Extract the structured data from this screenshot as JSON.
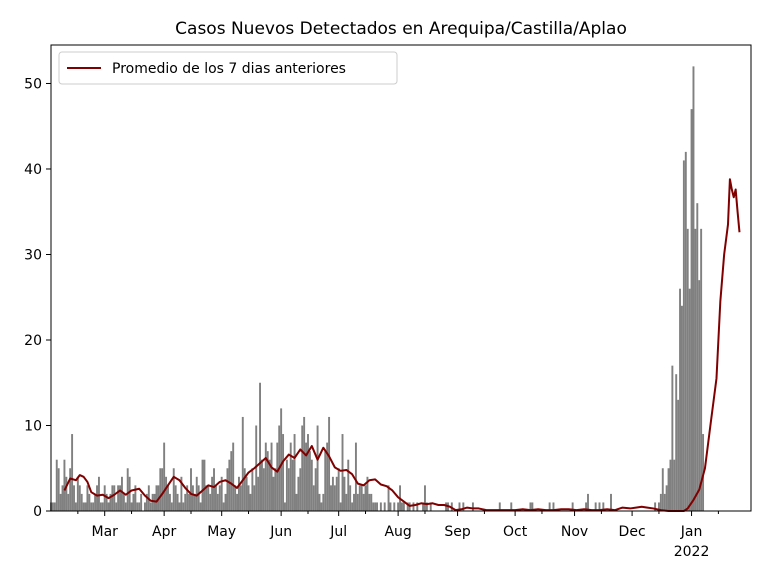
{
  "colors": {
    "bars": "#808080",
    "line": "#800000",
    "axis": "#000000",
    "legend_border": "#cccccc",
    "background": "#ffffff"
  },
  "chart_data": {
    "type": "bar",
    "title": "Casos Nuevos Detectados en Arequipa/Castilla/Aplao",
    "xlabel": "",
    "ylabel": "",
    "ylim": [
      0,
      54.5
    ],
    "xlim": [
      "2021-02-01",
      "2022-02-01"
    ],
    "yticks": [
      0,
      10,
      20,
      30,
      40,
      50
    ],
    "xticks": [
      {
        "date": "2021-03-01",
        "label": "Mar",
        "sublabel": ""
      },
      {
        "date": "2021-04-01",
        "label": "Apr",
        "sublabel": ""
      },
      {
        "date": "2021-05-01",
        "label": "May",
        "sublabel": ""
      },
      {
        "date": "2021-06-01",
        "label": "Jun",
        "sublabel": ""
      },
      {
        "date": "2021-07-01",
        "label": "Jul",
        "sublabel": ""
      },
      {
        "date": "2021-08-01",
        "label": "Aug",
        "sublabel": ""
      },
      {
        "date": "2021-09-01",
        "label": "Sep",
        "sublabel": ""
      },
      {
        "date": "2021-10-01",
        "label": "Oct",
        "sublabel": ""
      },
      {
        "date": "2021-11-01",
        "label": "Nov",
        "sublabel": ""
      },
      {
        "date": "2021-12-01",
        "label": "Dec",
        "sublabel": ""
      },
      {
        "date": "2022-01-01",
        "label": "Jan",
        "sublabel": "2022"
      }
    ],
    "grid": false,
    "legend": {
      "position": "top-left",
      "entries": [
        "Promedio de los 7 dias anteriores"
      ]
    },
    "series": [
      {
        "type": "bar",
        "color": "#808080",
        "segments": [
          {
            "start": "2021-02-01",
            "values": [
              1,
              1,
              1,
              6,
              5,
              2,
              3,
              6,
              4,
              2,
              5,
              9,
              3,
              1,
              4,
              3,
              2,
              1,
              1,
              3,
              2,
              1,
              1,
              2,
              3,
              4,
              1,
              1,
              3,
              2,
              1,
              2,
              3,
              3,
              1,
              3,
              3,
              4,
              2,
              1,
              5,
              4,
              1,
              2,
              3,
              1,
              1,
              2,
              0,
              1,
              2,
              3,
              1,
              2,
              2,
              3,
              3,
              5,
              5,
              8,
              4,
              3,
              2,
              1,
              5,
              3,
              2,
              1,
              4,
              1,
              2,
              3,
              2,
              5,
              3,
              2,
              4,
              3,
              1,
              6,
              6,
              3,
              3,
              2,
              4,
              5,
              3,
              2,
              3,
              4,
              1,
              2,
              5,
              6,
              7,
              8,
              3,
              2,
              4,
              3,
              11,
              5,
              4,
              3,
              2,
              5,
              3,
              10,
              4,
              15,
              6,
              5,
              8,
              7,
              6,
              8,
              4,
              5,
              8,
              10,
              12,
              9,
              1,
              6,
              5,
              8,
              6,
              9,
              2,
              4,
              5,
              10,
              11,
              8,
              9,
              7,
              6,
              3,
              5,
              10,
              2,
              1,
              2,
              7,
              8,
              11,
              3,
              4,
              3,
              4,
              5,
              1,
              9,
              4,
              2,
              6,
              3,
              1,
              2,
              8,
              2,
              3,
              3,
              2,
              3,
              4,
              2,
              2,
              1,
              1,
              1,
              0,
              1,
              0,
              1,
              0,
              3,
              1,
              0,
              1,
              0,
              1,
              3,
              1,
              1,
              0,
              1,
              1,
              0,
              1,
              0,
              1,
              0,
              0,
              1,
              3,
              1,
              0,
              1,
              0,
              0,
              0,
              0,
              0,
              0,
              0,
              1,
              1,
              0,
              1,
              0,
              0,
              0,
              1,
              0,
              1,
              0,
              0,
              0,
              0,
              1,
              0,
              0,
              0,
              0,
              0,
              0,
              0,
              0,
              0,
              0,
              0,
              0,
              0,
              1,
              0,
              0,
              0,
              0,
              0,
              1,
              0,
              0,
              0,
              0,
              0,
              0,
              0,
              0,
              0,
              1,
              1,
              0,
              0,
              0,
              0,
              0,
              0,
              0,
              0,
              1,
              0,
              1,
              0,
              0,
              0,
              0,
              0,
              0,
              0,
              0,
              0,
              1,
              0,
              0,
              0,
              0,
              0,
              0,
              1,
              2,
              0,
              0,
              0,
              1,
              0,
              1,
              0,
              1,
              0,
              0,
              0,
              2,
              0,
              0,
              0,
              0,
              0,
              0,
              0,
              0,
              0,
              0,
              0,
              0,
              0,
              0,
              0,
              0,
              0,
              0,
              0,
              0,
              0,
              0,
              1,
              0,
              1,
              2,
              5,
              2,
              3,
              5,
              6,
              17,
              6,
              16,
              13,
              26,
              24,
              41,
              42,
              33,
              26,
              47,
              52,
              33,
              36,
              27,
              33,
              9
            ]
          }
        ]
      },
      {
        "type": "line",
        "name": "Promedio de los 7 dias anteriores",
        "color": "#800000",
        "points": [
          [
            "2021-02-08",
            2.4
          ],
          [
            "2021-02-11",
            3.8
          ],
          [
            "2021-02-14",
            3.6
          ],
          [
            "2021-02-16",
            4.2
          ],
          [
            "2021-02-18",
            4.0
          ],
          [
            "2021-02-20",
            3.4
          ],
          [
            "2021-02-22",
            2.2
          ],
          [
            "2021-02-25",
            1.8
          ],
          [
            "2021-02-28",
            1.9
          ],
          [
            "2021-03-03",
            1.5
          ],
          [
            "2021-03-06",
            1.9
          ],
          [
            "2021-03-09",
            2.4
          ],
          [
            "2021-03-12",
            1.9
          ],
          [
            "2021-03-15",
            2.4
          ],
          [
            "2021-03-19",
            2.6
          ],
          [
            "2021-03-22",
            1.8
          ],
          [
            "2021-03-25",
            1.2
          ],
          [
            "2021-03-28",
            1.1
          ],
          [
            "2021-03-31",
            2.0
          ],
          [
            "2021-04-03",
            3.0
          ],
          [
            "2021-04-06",
            4.0
          ],
          [
            "2021-04-09",
            3.6
          ],
          [
            "2021-04-12",
            2.7
          ],
          [
            "2021-04-15",
            2.0
          ],
          [
            "2021-04-18",
            1.8
          ],
          [
            "2021-04-21",
            2.4
          ],
          [
            "2021-04-24",
            3.0
          ],
          [
            "2021-04-27",
            2.8
          ],
          [
            "2021-04-30",
            3.4
          ],
          [
            "2021-05-03",
            3.6
          ],
          [
            "2021-05-06",
            3.2
          ],
          [
            "2021-05-09",
            2.7
          ],
          [
            "2021-05-12",
            3.6
          ],
          [
            "2021-05-15",
            4.5
          ],
          [
            "2021-05-18",
            5.0
          ],
          [
            "2021-05-21",
            5.6
          ],
          [
            "2021-05-24",
            6.2
          ],
          [
            "2021-05-27",
            5.1
          ],
          [
            "2021-05-30",
            4.6
          ],
          [
            "2021-06-02",
            5.8
          ],
          [
            "2021-06-05",
            6.6
          ],
          [
            "2021-06-08",
            6.2
          ],
          [
            "2021-06-11",
            7.2
          ],
          [
            "2021-06-14",
            6.5
          ],
          [
            "2021-06-17",
            7.6
          ],
          [
            "2021-06-20",
            6.0
          ],
          [
            "2021-06-23",
            7.4
          ],
          [
            "2021-06-26",
            6.4
          ],
          [
            "2021-06-29",
            5.1
          ],
          [
            "2021-07-02",
            4.7
          ],
          [
            "2021-07-05",
            4.8
          ],
          [
            "2021-07-08",
            4.3
          ],
          [
            "2021-07-11",
            3.2
          ],
          [
            "2021-07-14",
            3.0
          ],
          [
            "2021-07-17",
            3.6
          ],
          [
            "2021-07-20",
            3.7
          ],
          [
            "2021-07-23",
            3.1
          ],
          [
            "2021-07-26",
            2.9
          ],
          [
            "2021-07-29",
            2.4
          ],
          [
            "2021-08-01",
            1.6
          ],
          [
            "2021-08-04",
            1.1
          ],
          [
            "2021-08-07",
            0.6
          ],
          [
            "2021-08-10",
            0.7
          ],
          [
            "2021-08-13",
            0.9
          ],
          [
            "2021-08-16",
            0.8
          ],
          [
            "2021-08-19",
            0.9
          ],
          [
            "2021-08-22",
            0.7
          ],
          [
            "2021-08-25",
            0.7
          ],
          [
            "2021-08-28",
            0.5
          ],
          [
            "2021-08-31",
            0.1
          ],
          [
            "2021-09-03",
            0.2
          ],
          [
            "2021-09-06",
            0.4
          ],
          [
            "2021-09-09",
            0.3
          ],
          [
            "2021-09-12",
            0.3
          ],
          [
            "2021-09-16",
            0.1
          ],
          [
            "2021-09-19",
            0.1
          ],
          [
            "2021-09-23",
            0.1
          ],
          [
            "2021-09-27",
            0.1
          ],
          [
            "2021-10-01",
            0.1
          ],
          [
            "2021-10-05",
            0.2
          ],
          [
            "2021-10-09",
            0.1
          ],
          [
            "2021-10-13",
            0.2
          ],
          [
            "2021-10-17",
            0.1
          ],
          [
            "2021-10-21",
            0.1
          ],
          [
            "2021-10-25",
            0.2
          ],
          [
            "2021-10-29",
            0.2
          ],
          [
            "2021-11-02",
            0.1
          ],
          [
            "2021-11-06",
            0.2
          ],
          [
            "2021-11-10",
            0.1
          ],
          [
            "2021-11-14",
            0.1
          ],
          [
            "2021-11-18",
            0.2
          ],
          [
            "2021-11-22",
            0.1
          ],
          [
            "2021-11-26",
            0.4
          ],
          [
            "2021-11-30",
            0.3
          ],
          [
            "2021-12-03",
            0.4
          ],
          [
            "2021-12-06",
            0.5
          ],
          [
            "2021-12-09",
            0.4
          ],
          [
            "2021-12-12",
            0.3
          ],
          [
            "2021-12-16",
            0.1
          ],
          [
            "2021-12-20",
            0.0
          ],
          [
            "2021-12-24",
            0.0
          ],
          [
            "2021-12-28",
            0.0
          ],
          [
            "2021-12-30",
            0.3
          ],
          [
            "2022-01-02",
            1.3
          ],
          [
            "2022-01-05",
            2.5
          ],
          [
            "2022-01-08",
            5.0
          ],
          [
            "2022-01-11",
            10.3
          ],
          [
            "2022-01-14",
            15.5
          ],
          [
            "2022-01-16",
            24.5
          ],
          [
            "2022-01-18",
            30.0
          ],
          [
            "2022-01-20",
            33.5
          ],
          [
            "2022-01-21",
            38.8
          ],
          [
            "2022-01-22",
            37.6
          ],
          [
            "2022-01-23",
            36.7
          ],
          [
            "2022-01-24",
            37.6
          ],
          [
            "2022-01-25",
            35.0
          ],
          [
            "2022-01-26",
            32.6
          ]
        ]
      }
    ]
  }
}
